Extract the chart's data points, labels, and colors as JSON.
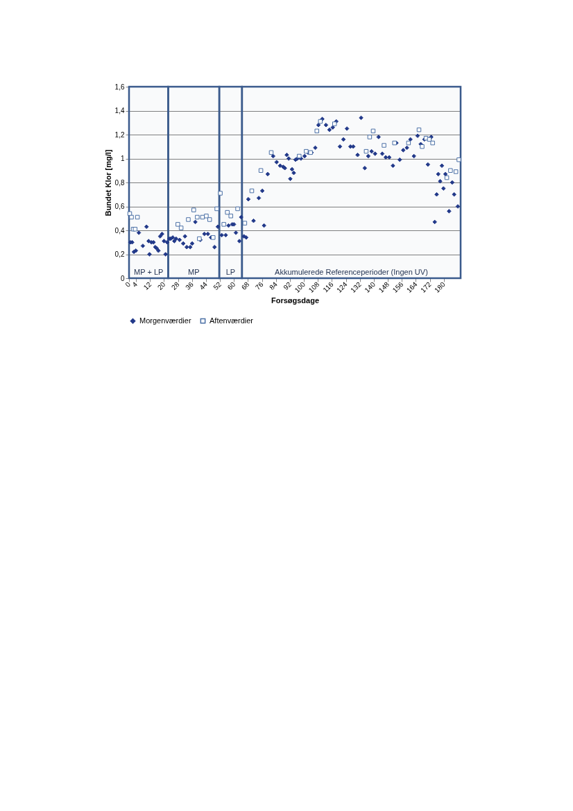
{
  "chart_data": {
    "type": "scatter",
    "xlabel": "Forsøgsdage",
    "ylabel": "Bundet Klor [mg/l]",
    "xlim": [
      0,
      189.6
    ],
    "xticks": [
      0,
      4,
      12,
      20,
      28,
      36,
      44,
      52,
      60,
      68,
      76,
      84,
      92,
      100,
      108,
      116,
      124,
      132,
      140,
      148,
      156,
      164,
      172,
      180
    ],
    "ylim": [
      0,
      1.6
    ],
    "yticks": [
      0,
      {
        "value": 0.2,
        "label": "0,2"
      },
      {
        "value": 0.4,
        "label": "0,4"
      },
      {
        "value": 0.6,
        "label": "0,6"
      },
      {
        "value": 0.8,
        "label": "0,8"
      },
      1,
      {
        "value": 1.2,
        "label": "1,2"
      },
      {
        "value": 1.4,
        "label": "1,4"
      },
      {
        "value": 1.6,
        "label": "1,6"
      }
    ],
    "grid": "y",
    "legend": "bottom",
    "series": [
      {
        "name": "Morgenværdier",
        "color": "#22398a",
        "marker": "diamond",
        "x": [
          0.8,
          1.8,
          2.8,
          3.9,
          5.6,
          7.9,
          10,
          11.2,
          11.7,
          12.8,
          14,
          15,
          15.8,
          16.8,
          17.8,
          18.9,
          20,
          20.9,
          21.8,
          23,
          23.8,
          25,
          25.9,
          26.9,
          28.9,
          31,
          32,
          33,
          35,
          36.1,
          37.9,
          40.8,
          43.1,
          45.1,
          46.9,
          48.9,
          50.8,
          53,
          55.3,
          56.9,
          59,
          60,
          61.1,
          63.1,
          64.1,
          65.7,
          67,
          68.2,
          71.2,
          74.2,
          76.2,
          77.2,
          79.3,
          82.4,
          84.4,
          86.4,
          88.2,
          89.1,
          90.2,
          91.3,
          92.2,
          93.2,
          94.2,
          95.2,
          96.3,
          98.3,
          100.4,
          102.4,
          104.4,
          106.5,
          108.3,
          110.5,
          112.6,
          114.6,
          116.5,
          118.5,
          120.6,
          122.6,
          124.6,
          126.6,
          128.2,
          130.7,
          132.7,
          134.8,
          136.8,
          138.7,
          140.7,
          142.7,
          144.8,
          146.8,
          148.8,
          150.9,
          152.9,
          154.8,
          156.8,
          158.9,
          160.9,
          162.9,
          165,
          166.8,
          168.9,
          170.9,
          172.8,
          174.8,
          175.9,
          176.8,
          177.9,
          178.9,
          179.8,
          180.9,
          183,
          184.8,
          185.9,
          188
        ],
        "values": [
          0.3,
          0.3,
          0.22,
          0.23,
          0.38,
          0.27,
          0.43,
          0.31,
          0.2,
          0.3,
          0.3,
          0.26,
          0.25,
          0.23,
          0.35,
          0.37,
          0.31,
          0.2,
          0.3,
          0.33,
          0.33,
          0.34,
          0.31,
          0.33,
          0.32,
          0.29,
          0.35,
          0.26,
          0.26,
          0.29,
          0.47,
          0.32,
          0.37,
          0.37,
          0.34,
          0.26,
          0.43,
          0.36,
          0.36,
          0.44,
          0.45,
          0.45,
          0.38,
          0.31,
          0.51,
          0.35,
          0.34,
          0.66,
          0.48,
          0.67,
          0.73,
          0.44,
          0.87,
          1.02,
          0.97,
          0.94,
          0.93,
          0.92,
          1.03,
          1.0,
          0.83,
          0.91,
          0.88,
          0.99,
          1.0,
          1.0,
          1.02,
          1.05,
          1.05,
          1.09,
          1.28,
          1.33,
          1.28,
          1.24,
          1.26,
          1.31,
          1.1,
          1.16,
          1.25,
          1.1,
          1.1,
          1.03,
          1.34,
          0.92,
          1.02,
          1.06,
          1.04,
          1.18,
          1.04,
          1.01,
          1.01,
          0.94,
          1.13,
          0.99,
          1.07,
          1.09,
          1.16,
          1.02,
          1.19,
          1.12,
          1.16,
          0.95,
          1.18,
          0.47,
          0.7,
          0.87,
          0.81,
          0.94,
          0.75,
          0.87,
          0.56,
          0.8,
          0.7,
          0.6
        ]
      },
      {
        "name": "Aftenværdier",
        "color": "#4a6fa5",
        "marker": "square",
        "x": [
          0.4,
          1.4,
          2.4,
          3.5,
          4.8,
          27.9,
          29.8,
          33.9,
          37,
          39,
          40.2,
          42,
          44.2,
          46.1,
          48.1,
          50.2,
          52.2,
          54.2,
          56.2,
          58.2,
          62.1,
          66.2,
          70.2,
          75.4,
          81.3,
          97.3,
          101.3,
          103.8,
          107.4,
          109.4,
          117.5,
          135.6,
          137.6,
          139.6,
          145.8,
          151.8,
          159.8,
          165.8,
          167.6,
          169.8,
          171.7,
          173.6,
          181.7,
          183.8,
          186.9,
          188.6
        ],
        "values": [
          0.54,
          0.51,
          0.41,
          0.41,
          0.51,
          0.45,
          0.42,
          0.49,
          0.57,
          0.51,
          0.33,
          0.51,
          0.52,
          0.49,
          0.34,
          0.58,
          0.71,
          0.45,
          0.55,
          0.52,
          0.58,
          0.46,
          0.73,
          0.9,
          1.05,
          1.02,
          1.06,
          1.05,
          1.23,
          1.31,
          1.29,
          1.06,
          1.18,
          1.23,
          1.11,
          1.13,
          1.13,
          1.24,
          1.1,
          1.17,
          1.16,
          1.13,
          0.84,
          0.9,
          0.89,
          0.99
        ]
      }
    ],
    "bands": [
      {
        "axis": "x",
        "from": 0,
        "to": 22.4,
        "label": "MP + LP",
        "color": "#3a5a8c"
      },
      {
        "axis": "x",
        "from": 22.4,
        "to": 51.6,
        "label": "MP",
        "color": "#3a5a8c"
      },
      {
        "axis": "x",
        "from": 51.6,
        "to": 64.6,
        "label": "LP",
        "color": "#3a5a8c"
      },
      {
        "axis": "x",
        "from": 64.6,
        "to": 189.6,
        "label": "Akkumulerede Referenceperioder (Ingen UV)",
        "color": "#3a5a8c"
      }
    ]
  }
}
